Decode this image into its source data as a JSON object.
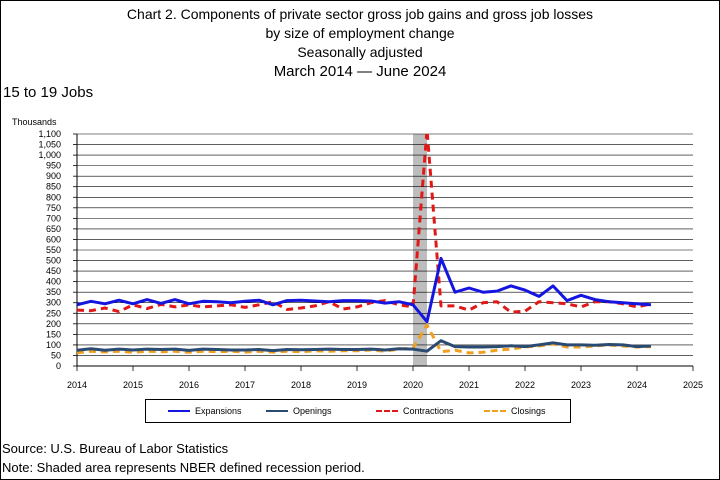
{
  "title": {
    "line1": "Chart 2. Components of private sector gross job gains and gross job losses",
    "line2": "by size of employment change",
    "line3": "Seasonally adjusted",
    "line4": "March 2014 — June 2024"
  },
  "subtitle": "15 to 19 Jobs",
  "footer": {
    "source": "Source: U.S. Bureau of Labor Statistics",
    "note": "Note: Shaded area represents NBER defined recession period."
  },
  "colors": {
    "expansions": "#1515e0",
    "openings": "#2a4a72",
    "contractions": "#e01818",
    "closings": "#f0a020",
    "recession": "#bdbdbd"
  },
  "chart_data": {
    "type": "line",
    "ylabel": "Thousands",
    "xlim": [
      2014,
      2025
    ],
    "ylim": [
      0,
      1100
    ],
    "yticks": [
      0,
      50,
      100,
      150,
      200,
      250,
      300,
      350,
      400,
      450,
      500,
      550,
      600,
      650,
      700,
      750,
      800,
      850,
      900,
      950,
      1000,
      1050,
      1100
    ],
    "ytick_labels": [
      "0",
      "50",
      "100",
      "150",
      "200",
      "250",
      "300",
      "350",
      "400",
      "450",
      "500",
      "550",
      "600",
      "650",
      "700",
      "750",
      "800",
      "850",
      "900",
      "950",
      "1,000",
      "1,050",
      "1,100"
    ],
    "xticks": [
      2014,
      2015,
      2016,
      2017,
      2018,
      2019,
      2020,
      2021,
      2022,
      2023,
      2024,
      2025
    ],
    "xtick_labels": [
      "2014",
      "2015",
      "2016",
      "2017",
      "2018",
      "2019",
      "2020",
      "2021",
      "2022",
      "2023",
      "2024",
      "2025"
    ],
    "recession": [
      2020.0,
      2020.25
    ],
    "grid": "horizontal",
    "legend": "bottom",
    "x": [
      2014.0,
      2014.25,
      2014.5,
      2014.75,
      2015.0,
      2015.25,
      2015.5,
      2015.75,
      2016.0,
      2016.25,
      2016.5,
      2016.75,
      2017.0,
      2017.25,
      2017.5,
      2017.75,
      2018.0,
      2018.25,
      2018.5,
      2018.75,
      2019.0,
      2019.25,
      2019.5,
      2019.75,
      2020.0,
      2020.25,
      2020.5,
      2020.75,
      2021.0,
      2021.25,
      2021.5,
      2021.75,
      2022.0,
      2022.25,
      2022.5,
      2022.75,
      2023.0,
      2023.25,
      2023.5,
      2023.75,
      2024.0,
      2024.25
    ],
    "series": [
      {
        "name": "Expansions",
        "style": "solid",
        "values": [
          290,
          307,
          295,
          312,
          295,
          315,
          297,
          315,
          295,
          307,
          305,
          300,
          307,
          312,
          290,
          310,
          312,
          308,
          305,
          310,
          310,
          308,
          298,
          305,
          290,
          210,
          510,
          350,
          370,
          350,
          355,
          380,
          360,
          330,
          380,
          310,
          335,
          315,
          305,
          300,
          295,
          290
        ]
      },
      {
        "name": "Openings",
        "style": "solid",
        "values": [
          75,
          82,
          75,
          80,
          76,
          80,
          78,
          80,
          74,
          80,
          78,
          76,
          76,
          78,
          73,
          78,
          77,
          78,
          80,
          78,
          78,
          80,
          76,
          82,
          80,
          70,
          120,
          92,
          90,
          90,
          92,
          96,
          92,
          100,
          110,
          100,
          100,
          98,
          102,
          100,
          92,
          95
        ]
      },
      {
        "name": "Contractions",
        "style": "dashed",
        "values": [
          265,
          262,
          275,
          258,
          290,
          272,
          292,
          280,
          290,
          280,
          285,
          290,
          278,
          290,
          305,
          268,
          275,
          285,
          305,
          270,
          280,
          300,
          310,
          290,
          280,
          1120,
          285,
          285,
          265,
          300,
          305,
          255,
          260,
          305,
          300,
          295,
          280,
          305,
          305,
          295,
          280,
          295
        ]
      },
      {
        "name": "Closings",
        "style": "dashed",
        "values": [
          62,
          70,
          67,
          70,
          65,
          70,
          68,
          70,
          65,
          70,
          68,
          70,
          66,
          70,
          66,
          70,
          68,
          72,
          70,
          72,
          72,
          76,
          70,
          80,
          85,
          195,
          68,
          75,
          62,
          65,
          75,
          80,
          90,
          95,
          105,
          90,
          90,
          95,
          100,
          95,
          90,
          92
        ]
      }
    ]
  }
}
